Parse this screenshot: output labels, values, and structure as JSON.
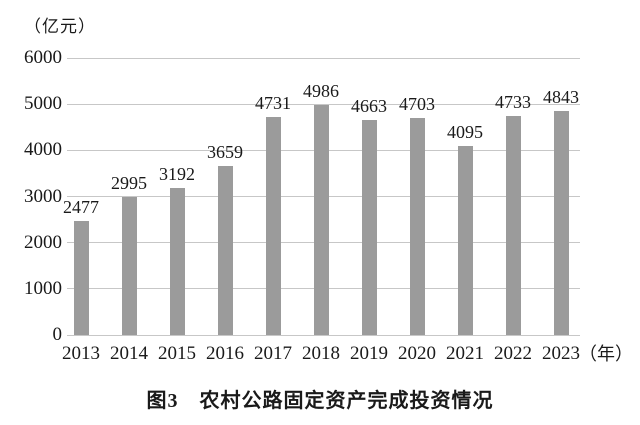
{
  "figure": {
    "y_unit_label": "（亿元）",
    "x_unit_label": "（年）",
    "caption": "图3　农村公路固定资产完成投资情况"
  },
  "colors": {
    "bar": "#9b9b9b",
    "gridline": "#c7c7c7",
    "text": "#1a1a1a",
    "background": "#ffffff"
  },
  "chart_data": {
    "type": "bar",
    "categories": [
      "2013",
      "2014",
      "2015",
      "2016",
      "2017",
      "2018",
      "2019",
      "2020",
      "2021",
      "2022",
      "2023"
    ],
    "values": [
      2477,
      2995,
      3192,
      3659,
      4731,
      4986,
      4663,
      4703,
      4095,
      4733,
      4843
    ],
    "title": "图3　农村公路固定资产完成投资情况",
    "xlabel": "（年）",
    "ylabel": "（亿元）",
    "ylim": [
      0,
      6000
    ],
    "yticks": [
      0,
      1000,
      2000,
      3000,
      4000,
      5000,
      6000
    ],
    "grid": true,
    "legend": false,
    "data_labels": true
  }
}
